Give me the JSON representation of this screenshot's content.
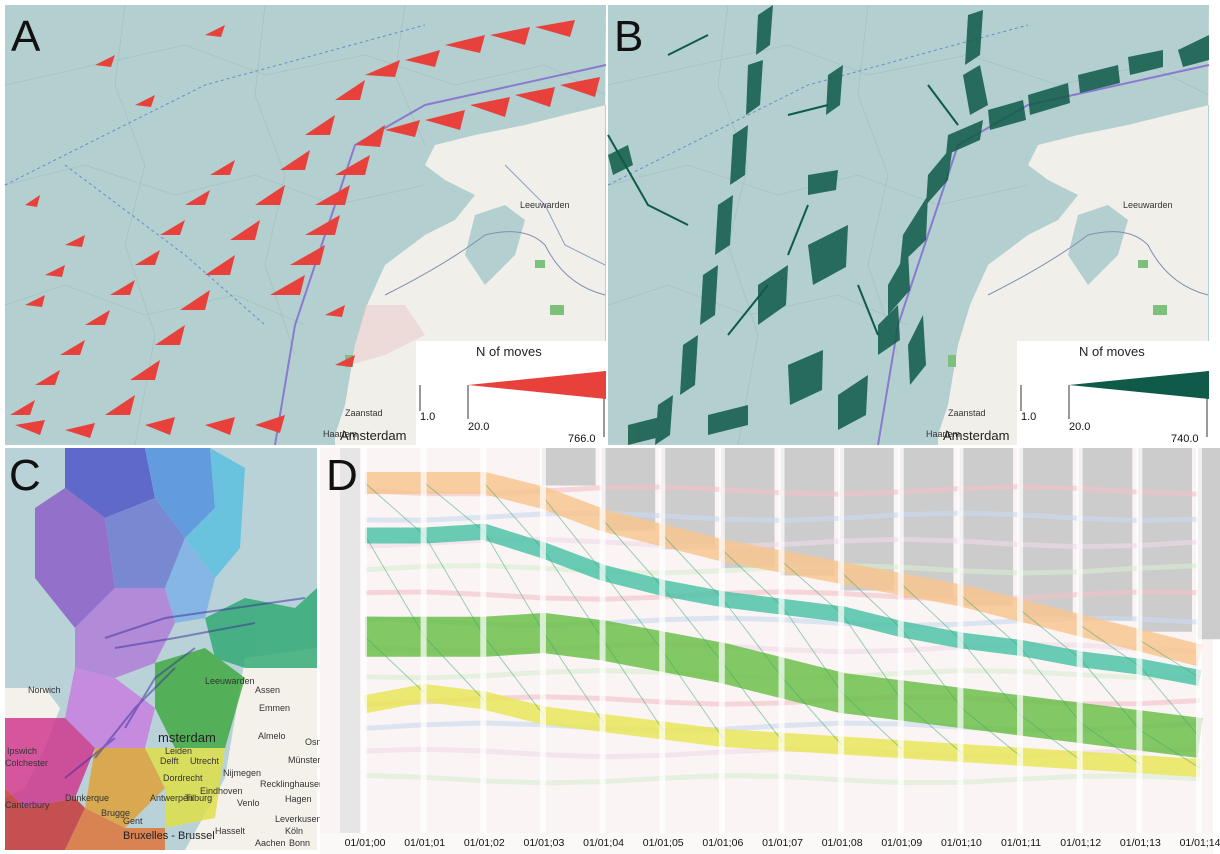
{
  "panels": {
    "a": {
      "letter": "A",
      "legend": {
        "title": "N of moves",
        "min": "1.0",
        "mid": "20.0",
        "max": "766.0",
        "color": "#e8413c"
      }
    },
    "b": {
      "letter": "B",
      "legend": {
        "title": "N of moves",
        "min": "1.0",
        "mid": "20.0",
        "max": "740.0",
        "color": "#0f5a48"
      }
    },
    "c": {
      "letter": "C"
    },
    "d": {
      "letter": "D"
    }
  },
  "map_labels": {
    "a": {
      "zaanstad": "Zaanstad",
      "haarlem": "Haarlem",
      "amsterdam": "Amsterdam",
      "leeuwarden": "Leeuwarden"
    },
    "b": {
      "zaanstad": "Zaanstad",
      "haarlem": "Haarlem",
      "amsterdam": "Amsterdam",
      "leeuwarden": "Leeuwarden"
    },
    "c": {
      "leeuwarden": "Leeuwarden",
      "assen": "Assen",
      "emmen": "Emmen",
      "norwich": "Norwich",
      "ipswich": "Ipswich",
      "colchester": "Colchester",
      "canterbury": "Canterbury",
      "dunkerque": "Dunkerque",
      "amsterdam": "msterdam",
      "almelo": "Almelo",
      "munster": "Münster",
      "osnabruck": "Osn",
      "leiden": "Leiden",
      "delft": "Delft",
      "utrecht": "Utrecht",
      "nijmegen": "Nijmegen",
      "dordrecht": "Dordrecht",
      "eindhoven": "Eindhoven",
      "tilburg": "Tilburg",
      "antwerpen": "Antwerpen",
      "venlo": "Venlo",
      "recklinghausen": "Recklinghausen",
      "hagen": "Hagen",
      "bruxelles": "Bruxelles - Brussel",
      "koln": "Köln",
      "bonn": "Bonn",
      "leverkusen": "Leverkusen",
      "aachen": "Aachen",
      "hasselt": "Hasselt",
      "brugge": "Brugge",
      "gent": "Gent"
    }
  },
  "chart_data": {
    "type": "area",
    "title": "",
    "x": [
      "01/01;00",
      "01/01;01",
      "01/01;02",
      "01/01;03",
      "01/01;04",
      "01/01;05",
      "01/01;06",
      "01/01;07",
      "01/01;08",
      "01/01;09",
      "01/01;10",
      "01/01;11",
      "01/01;12",
      "01/01;13",
      "01/01;14"
    ],
    "series": [
      {
        "color": "#f7c58f",
        "values": [
          0.08,
          0.08,
          0.08,
          0.12,
          0.18,
          0.22,
          0.26,
          0.29,
          0.32,
          0.35,
          0.38,
          0.42,
          0.46,
          0.5,
          0.54
        ]
      },
      {
        "color": "#4fc3a8",
        "values": [
          0.22,
          0.22,
          0.21,
          0.26,
          0.32,
          0.36,
          0.39,
          0.41,
          0.43,
          0.47,
          0.5,
          0.52,
          0.55,
          0.57,
          0.6
        ]
      },
      {
        "color": "#6cc04a",
        "values": [
          0.49,
          0.49,
          0.49,
          0.48,
          0.5,
          0.53,
          0.56,
          0.6,
          0.64,
          0.66,
          0.68,
          0.7,
          0.72,
          0.74,
          0.76
        ]
      },
      {
        "color": "#e8e65a",
        "values": [
          0.67,
          0.64,
          0.66,
          0.7,
          0.72,
          0.74,
          0.76,
          0.77,
          0.78,
          0.79,
          0.8,
          0.81,
          0.82,
          0.83,
          0.84
        ]
      }
    ],
    "inactive_share": [
      0.0,
      0.0,
      0.0,
      0.1,
      0.22,
      0.27,
      0.32,
      0.34,
      0.38,
      0.4,
      0.42,
      0.45,
      0.46,
      0.49,
      0.51
    ],
    "inactive_color": "#cccccc"
  },
  "colors": {
    "water": "#b3cfcf",
    "land": "#f1efe9",
    "red": "#e8413c",
    "teal": "#0f5a48",
    "teal_light": "#2e8d6f",
    "route": "#6a6ac0"
  }
}
